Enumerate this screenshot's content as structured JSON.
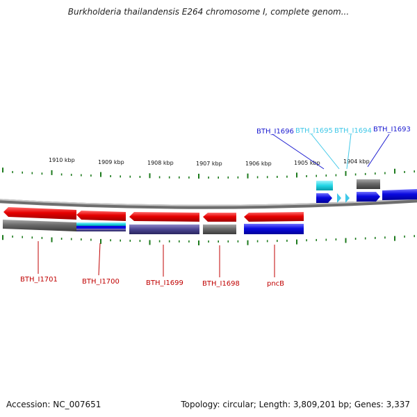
{
  "title": "Burkholderia thailandensis E264 chromosome I, complete genom...",
  "footer": {
    "accession": "Accession: NC_007651",
    "summary": "Topology: circular; Length: 3,809,201 bp; Genes: 3,337"
  },
  "scale_labels": [
    "1910 kbp",
    "1909 kbp",
    "1908 kbp",
    "1907 kbp",
    "1906 kbp",
    "1905 kbp",
    "1904 kbp"
  ],
  "top_gene_labels": [
    {
      "name": "BTH_I1696",
      "color": "#1a1ad0"
    },
    {
      "name": "BTH_I1695",
      "color": "#3fc8e8"
    },
    {
      "name": "BTH_I1694",
      "color": "#3fc8e8"
    },
    {
      "name": "BTH_I1693",
      "color": "#1a1ad0"
    }
  ],
  "bottom_gene_labels": [
    {
      "name": "BTH_I1701",
      "color": "#c00000"
    },
    {
      "name": "BTH_I1700",
      "color": "#c00000"
    },
    {
      "name": "BTH_I1699",
      "color": "#c00000"
    },
    {
      "name": "BTH_I1698",
      "color": "#c00000"
    },
    {
      "name": "pncB",
      "color": "#c00000"
    }
  ],
  "colors": {
    "forward_gene": "#0a0ae0",
    "reverse_gene": "#e00000",
    "gray_feature": "#6a6a6a",
    "cyan_feature": "#22d6e6",
    "purple_feature": "#4a4490",
    "tick": "#1c7a1c",
    "backbone": "#8a8a8a"
  }
}
